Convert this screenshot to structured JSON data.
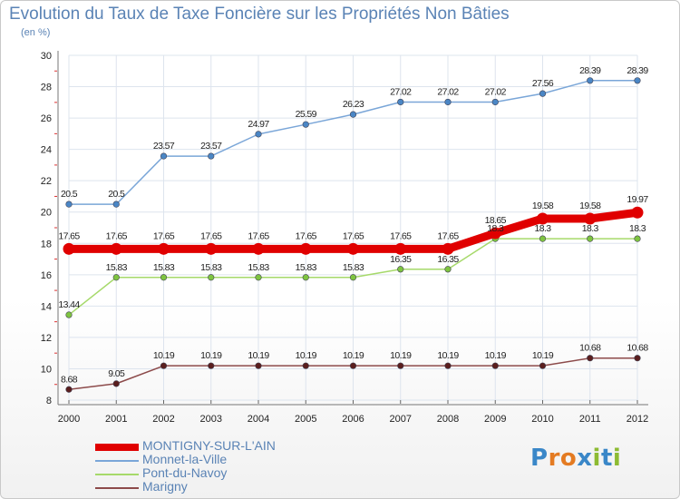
{
  "title": "Evolution du Taux de Taxe Foncière sur les Propriétés Non Bâties",
  "unit_label": "(en %)",
  "brand": {
    "text": "Proxiti",
    "letters": [
      "P",
      "r",
      "o",
      "x",
      "i",
      "t",
      "i"
    ],
    "letter_colors": [
      "#3a87c8",
      "#e47b22",
      "#e47b22",
      "#3a87c8",
      "#8dbb33",
      "#3a87c8",
      "#8dbb33"
    ]
  },
  "chart_data": {
    "type": "line",
    "title": "Evolution du Taux de Taxe Foncière sur les Propriétés Non Bâties",
    "ylabel": "(en %)",
    "xlabel": "",
    "categories": [
      "2000",
      "2001",
      "2002",
      "2003",
      "2004",
      "2005",
      "2006",
      "2007",
      "2008",
      "2009",
      "2010",
      "2011",
      "2012"
    ],
    "ylim": [
      8,
      30
    ],
    "yticks": [
      "8",
      "10",
      "12",
      "14",
      "16",
      "18",
      "20",
      "22",
      "24",
      "26",
      "28",
      "30"
    ],
    "grid": true,
    "series": [
      {
        "name": "MONTIGNY-SUR-L'AIN",
        "color": "#e00000",
        "marker_color": "#e00000",
        "emphasized": true,
        "values": [
          17.65,
          17.65,
          17.65,
          17.65,
          17.65,
          17.65,
          17.65,
          17.65,
          17.65,
          18.65,
          19.58,
          19.58,
          19.97
        ],
        "labels": [
          "17.65",
          "17.65",
          "17.65",
          "17.65",
          "17.65",
          "17.65",
          "17.65",
          "17.65",
          "17.65",
          "18.65",
          "19.58",
          "19.58",
          "19.97"
        ]
      },
      {
        "name": "Monnet-la-Ville",
        "color": "#7aa6d8",
        "marker_color": "#4a86c5",
        "emphasized": false,
        "values": [
          20.5,
          20.5,
          23.57,
          23.57,
          24.97,
          25.59,
          26.23,
          27.02,
          27.02,
          27.02,
          27.56,
          28.39,
          28.39
        ],
        "labels": [
          "20.5",
          "20.5",
          "23.57",
          "23.57",
          "24.97",
          "25.59",
          "26.23",
          "27.02",
          "27.02",
          "27.02",
          "27.56",
          "28.39",
          "28.39"
        ]
      },
      {
        "name": "Pont-du-Navoy",
        "color": "#a6d96a",
        "marker_color": "#7ec440",
        "emphasized": false,
        "values": [
          13.44,
          15.83,
          15.83,
          15.83,
          15.83,
          15.83,
          15.83,
          16.35,
          16.35,
          18.3,
          18.3,
          18.3,
          18.3
        ],
        "labels": [
          "13.44",
          "15.83",
          "15.83",
          "15.83",
          "15.83",
          "15.83",
          "15.83",
          "16.35",
          "16.35",
          "18.3",
          "18.3",
          "18.3",
          "18.3"
        ]
      },
      {
        "name": "Marigny",
        "color": "#8c4a4a",
        "marker_color": "#5a1e1e",
        "emphasized": false,
        "values": [
          8.68,
          9.05,
          10.19,
          10.19,
          10.19,
          10.19,
          10.19,
          10.19,
          10.19,
          10.19,
          10.19,
          10.68,
          10.68
        ],
        "labels": [
          "8.68",
          "9.05",
          "10.19",
          "10.19",
          "10.19",
          "10.19",
          "10.19",
          "10.19",
          "10.19",
          "10.19",
          "10.19",
          "10.68",
          "10.68"
        ]
      }
    ],
    "legend": [
      {
        "label": "MONTIGNY-SUR-L'AIN",
        "color": "#e00000"
      },
      {
        "label": "Monnet-la-Ville",
        "color": "#7aa6d8"
      },
      {
        "label": "Pont-du-Navoy",
        "color": "#a6d96a"
      },
      {
        "label": "Marigny",
        "color": "#8c4a4a"
      }
    ],
    "legend_position": "bottom-left"
  }
}
